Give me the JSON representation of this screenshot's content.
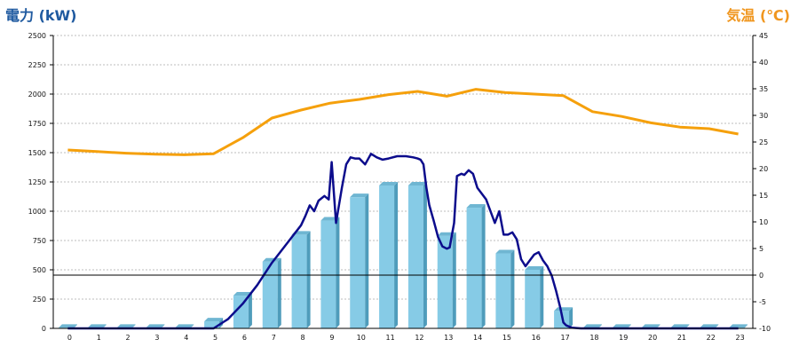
{
  "chart_data": {
    "type": "bar+line",
    "left_axis_title": "電力 (kW)",
    "right_axis_title": "気温 (℃)",
    "colors": {
      "left_title": "#1f5aa0",
      "right_title": "#f0961e",
      "bar_front": "#86cbe6",
      "bar_side": "#4f9cbb",
      "bar_top": "#6fb6d2",
      "power_line": "#0c0c8c",
      "temp_line": "#f5a00c",
      "grid": "#bdbdbd"
    },
    "x_ticks": [
      "0",
      "1",
      "2",
      "3",
      "4",
      "5",
      "6",
      "7",
      "8",
      "9",
      "10",
      "11",
      "12",
      "13",
      "14",
      "15",
      "16",
      "17",
      "18",
      "19",
      "20",
      "21",
      "22",
      "23"
    ],
    "left_ticks": [
      "0",
      "250",
      "500",
      "750",
      "1000",
      "1250",
      "1500",
      "1750",
      "2000",
      "2250",
      "2500"
    ],
    "right_ticks": [
      "-10",
      "-5",
      "0",
      "5",
      "10",
      "15",
      "20",
      "25",
      "30",
      "35",
      "40",
      "45"
    ],
    "ylim_left": [
      0,
      2500
    ],
    "ylim_right": [
      -10,
      45
    ],
    "reference_line_right": 0,
    "grid": "horizontal-dotted",
    "bars": {
      "name": "電力 (hourly)",
      "values": [
        5,
        5,
        5,
        5,
        5,
        60,
        280,
        570,
        800,
        920,
        1120,
        1220,
        1220,
        790,
        1030,
        640,
        500,
        150,
        5,
        5,
        5,
        5,
        5,
        5
      ]
    },
    "power_line": {
      "x": [
        0,
        1,
        2,
        3,
        4,
        4.5,
        5,
        5.5,
        6,
        6.5,
        7,
        7.5,
        8,
        8.15,
        8.3,
        8.45,
        8.6,
        8.8,
        8.95,
        9.05,
        9.2,
        9.4,
        9.55,
        9.7,
        9.85,
        10,
        10.2,
        10.4,
        10.6,
        10.8,
        11,
        11.3,
        11.6,
        11.85,
        12,
        12.1,
        12.2,
        12.3,
        12.4,
        12.55,
        12.7,
        12.85,
        13,
        13.1,
        13.25,
        13.35,
        13.5,
        13.6,
        13.75,
        13.9,
        14.05,
        14.2,
        14.35,
        14.5,
        14.65,
        14.8,
        14.95,
        15.1,
        15.25,
        15.4,
        15.55,
        15.7,
        15.85,
        16,
        16.15,
        16.3,
        16.45,
        16.6,
        16.75,
        16.9,
        17,
        17.1,
        17.3,
        17.6,
        18,
        19,
        20,
        21,
        22,
        23
      ],
      "values": [
        0,
        0,
        0,
        0,
        0,
        0,
        0,
        80,
        210,
        370,
        560,
        720,
        880,
        960,
        1050,
        1000,
        1090,
        1130,
        1100,
        1420,
        900,
        1200,
        1400,
        1460,
        1450,
        1450,
        1400,
        1490,
        1460,
        1440,
        1450,
        1470,
        1470,
        1460,
        1450,
        1440,
        1400,
        1200,
        1050,
        920,
        780,
        700,
        680,
        690,
        900,
        1300,
        1320,
        1310,
        1350,
        1320,
        1200,
        1150,
        1100,
        1000,
        900,
        1000,
        800,
        800,
        820,
        760,
        590,
        530,
        580,
        630,
        650,
        580,
        530,
        450,
        320,
        170,
        50,
        25,
        5,
        0,
        0,
        0,
        0,
        0,
        0,
        0
      ]
    },
    "temperature_line": {
      "x": [
        0,
        1,
        2,
        3,
        4,
        5,
        6,
        7,
        8,
        9,
        10,
        11,
        12,
        13,
        14,
        15,
        16,
        17,
        18,
        19,
        20,
        21,
        22,
        23
      ],
      "values": [
        23.5,
        23.2,
        22.9,
        22.7,
        22.6,
        22.8,
        25.8,
        29.5,
        31.0,
        32.3,
        33.0,
        33.9,
        34.5,
        33.6,
        34.9,
        34.3,
        34.0,
        33.7,
        30.7,
        29.8,
        28.6,
        27.8,
        27.5,
        26.5
      ]
    }
  }
}
